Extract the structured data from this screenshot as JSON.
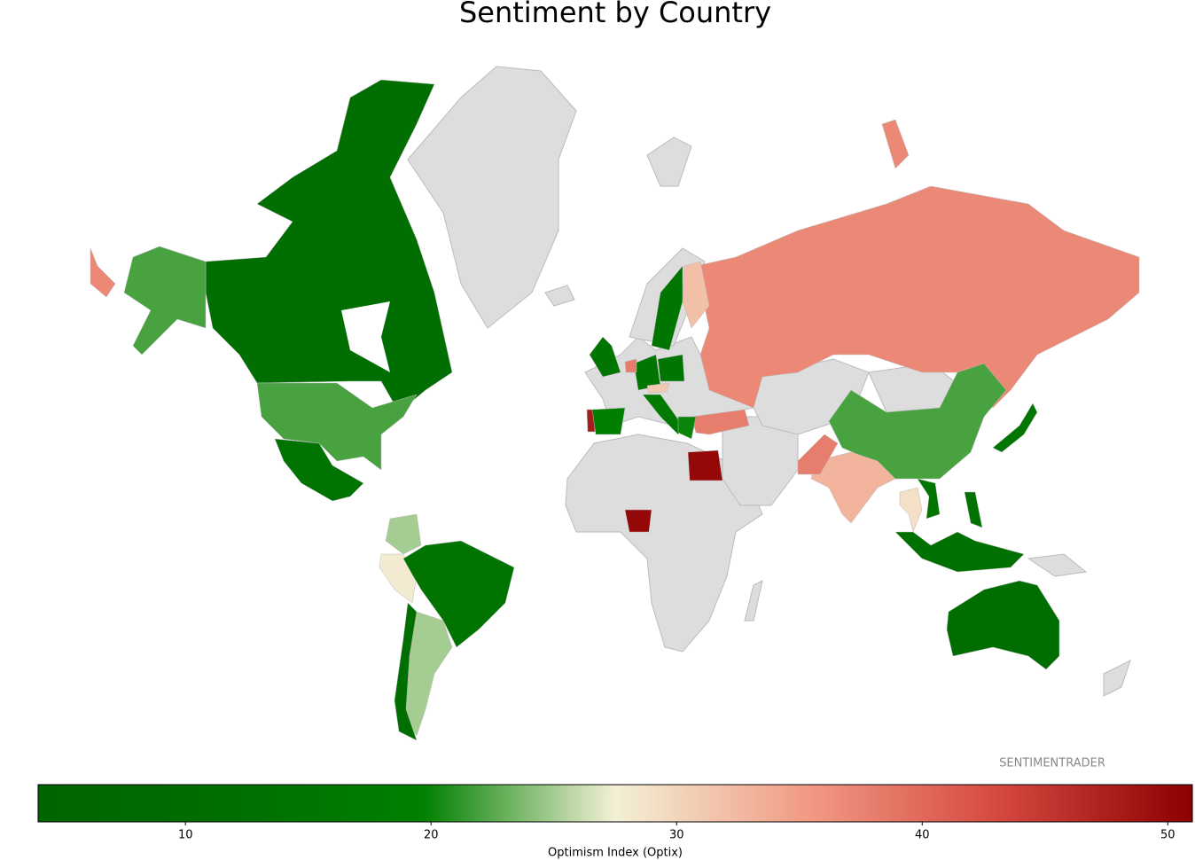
{
  "chart_data": {
    "type": "choropleth",
    "title": "Sentiment by Country",
    "values": [
      12,
      22,
      14,
      25,
      28,
      14,
      25,
      12,
      37,
      22,
      15,
      33,
      38,
      11,
      13,
      50,
      50,
      38,
      48,
      19,
      15,
      15,
      32,
      15,
      15,
      38,
      31,
      17,
      20,
      15,
      29,
      14
    ],
    "colorscale": [
      "#006400",
      "#006e00",
      "#008000",
      "#f3f1d6",
      "#f19a84",
      "#d54840",
      "#8b0000"
    ],
    "missing_color": "#dddddd",
    "colorbar": {
      "label": "Optimism Index (Optix)",
      "lim": [
        4,
        51
      ],
      "ticks": [
        10,
        20,
        30,
        40,
        50
      ]
    },
    "watermark": "SENTIMENTRADER"
  }
}
